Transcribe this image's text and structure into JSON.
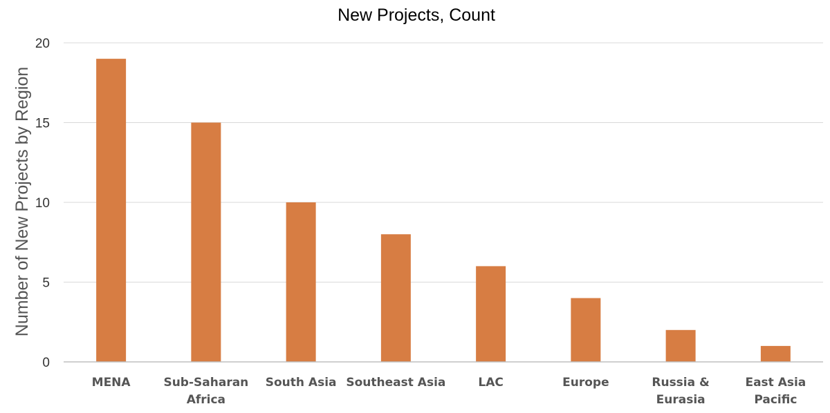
{
  "chart_data": {
    "type": "bar",
    "title": "New Projects, Count",
    "ylabel": "Number of New Projects by Region",
    "xlabel": "",
    "categories": [
      [
        "MENA"
      ],
      [
        "Sub-Saharan",
        "Africa"
      ],
      [
        "South Asia"
      ],
      [
        "Southeast Asia"
      ],
      [
        "LAC"
      ],
      [
        "Europe"
      ],
      [
        "Russia &",
        "Eurasia"
      ],
      [
        "East Asia",
        "Pacific"
      ]
    ],
    "values": [
      19,
      15,
      10,
      8,
      6,
      4,
      2,
      1
    ],
    "ylim": [
      0,
      20
    ],
    "yticks": [
      0,
      5,
      10,
      15,
      20
    ],
    "grid": true,
    "legend": "none",
    "bar_color": "#D77D43"
  }
}
